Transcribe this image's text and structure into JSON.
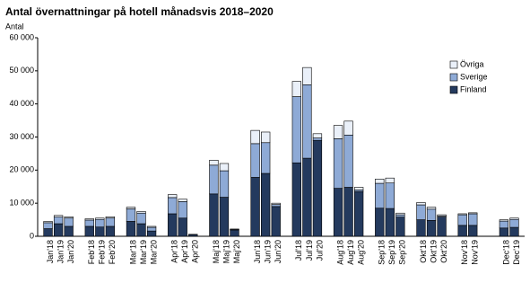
{
  "chart_data": {
    "type": "bar",
    "stacked": true,
    "title": "Antal övernattningar på hotell månadsvis 2018–2020",
    "y_label": "Antal",
    "categories": [
      "Jan'18",
      "Jan'19",
      "Jan'20",
      null,
      "Feb'18",
      "Feb'19",
      "Feb'20",
      null,
      "Mar'18",
      "Mar'19",
      "Mar'20",
      null,
      "Apr'18",
      "Apr'19",
      "Apr'20",
      null,
      "Maj'18",
      "Maj'19",
      "Maj'20",
      null,
      "Jun'18",
      "Jun'19",
      "Jun'20",
      null,
      "Jul'18",
      "Jul'19",
      "Jul'20",
      null,
      "Aug'18",
      "Aug'19",
      "Aug'20",
      null,
      "Sep'18",
      "Sep'19",
      "Sep'20",
      null,
      "Okt'18",
      "Okt'19",
      "Okt'20",
      null,
      "Nov'18",
      "Nov'19",
      null,
      null,
      "Dec'18",
      "Dec'19"
    ],
    "series": [
      {
        "name": "Finland",
        "color": "#243a5e",
        "values": [
          2300,
          3800,
          3000,
          null,
          3000,
          2800,
          3000,
          null,
          4500,
          3800,
          1600,
          null,
          6800,
          5500,
          500,
          null,
          12800,
          11800,
          1900,
          null,
          17800,
          19000,
          9000,
          null,
          22200,
          23600,
          29000,
          null,
          14500,
          14800,
          13500,
          null,
          8500,
          8400,
          5800,
          null,
          5000,
          4800,
          5800,
          null,
          3300,
          3300,
          null,
          null,
          2500,
          2700
        ]
      },
      {
        "name": "Sverige",
        "color": "#8eaad6",
        "values": [
          1800,
          2000,
          2500,
          null,
          1900,
          2300,
          2500,
          null,
          3800,
          3200,
          1100,
          null,
          4900,
          5000,
          80,
          null,
          8700,
          8000,
          200,
          null,
          10200,
          9300,
          600,
          null,
          20000,
          22200,
          700,
          null,
          15000,
          15800,
          500,
          null,
          7500,
          7700,
          700,
          null,
          4500,
          3400,
          300,
          null,
          3200,
          3500,
          null,
          null,
          2100,
          2400
        ]
      },
      {
        "name": "Övriga",
        "color": "#eaf0f9",
        "values": [
          400,
          500,
          400,
          null,
          400,
          400,
          400,
          null,
          500,
          500,
          300,
          null,
          900,
          700,
          20,
          null,
          1500,
          2200,
          100,
          null,
          4000,
          3200,
          400,
          null,
          4600,
          5200,
          1300,
          null,
          4000,
          4200,
          800,
          null,
          1300,
          1500,
          500,
          null,
          700,
          600,
          400,
          null,
          300,
          300,
          null,
          null,
          400,
          400
        ]
      }
    ],
    "ylim": [
      0,
      60000
    ],
    "yticks": [
      0,
      {
        "value": 10000,
        "label": "10 000"
      },
      {
        "value": 20000,
        "label": "20 000"
      },
      {
        "value": 30000,
        "label": "30 000"
      },
      {
        "value": 40000,
        "label": "40 000"
      },
      {
        "value": 50000,
        "label": "50 000"
      },
      {
        "value": 60000,
        "label": "60 000"
      }
    ],
    "legend": "top-right"
  }
}
